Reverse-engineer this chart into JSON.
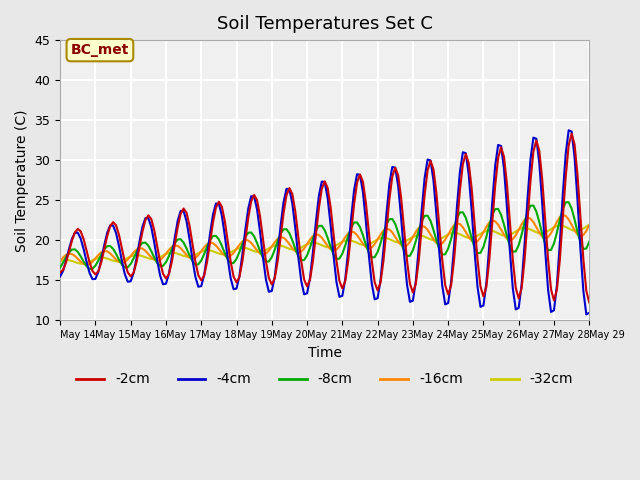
{
  "title": "Soil Temperatures Set C",
  "xlabel": "Time",
  "ylabel": "Soil Temperature (C)",
  "ylim": [
    10,
    45
  ],
  "annotation": "BC_met",
  "annotation_color": "#8B0000",
  "annotation_bg": "#FFFFCC",
  "series_colors": {
    "-2cm": "#CC0000",
    "-4cm": "#0000CC",
    "-8cm": "#00AA00",
    "-16cm": "#FF8800",
    "-32cm": "#CCCC00"
  },
  "legend_labels": [
    "-2cm",
    "-4cm",
    "-8cm",
    "-16cm",
    "-32cm"
  ],
  "background_color": "#E8E8E8",
  "plot_bg": "#F0F0F0",
  "grid_color": "white",
  "tick_labels": [
    "May 14",
    "May 15",
    "May 16",
    "May 17",
    "May 18",
    "May 19",
    "May 20",
    "May 21",
    "May 22",
    "May 23",
    "May 24",
    "May 25",
    "May 26",
    "May 27",
    "May 28",
    "May 29"
  ]
}
